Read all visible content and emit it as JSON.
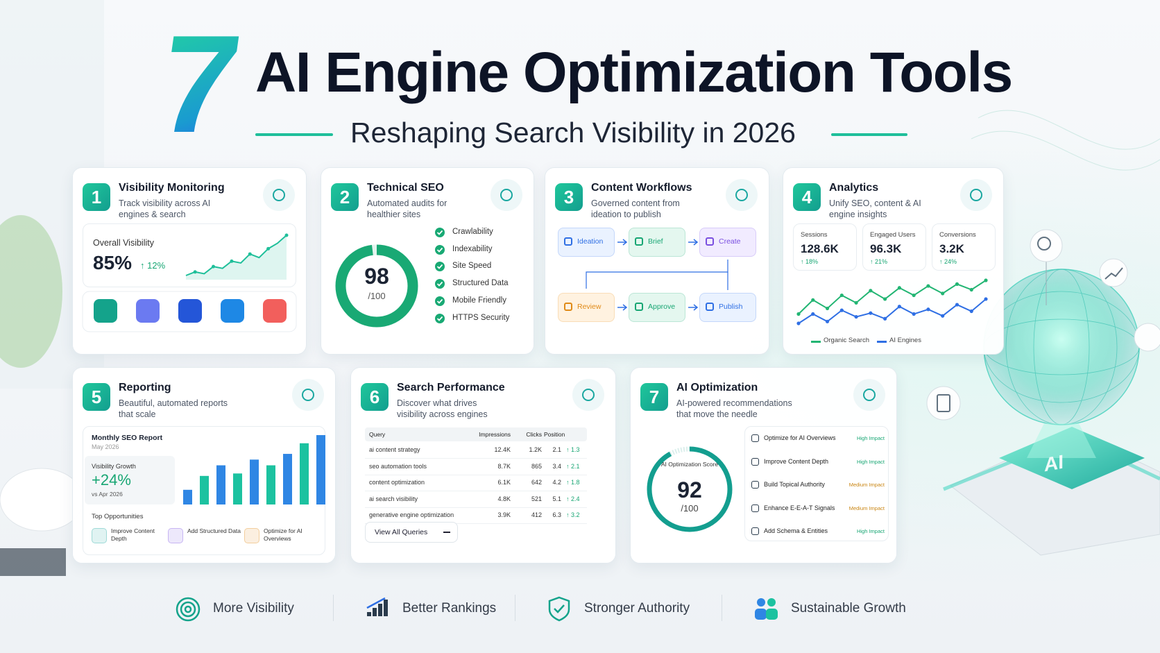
{
  "header": {
    "number": "7",
    "title": "AI Engine Optimization Tools",
    "subtitle": "Reshaping Search Visibility in 2026"
  },
  "cards": [
    {
      "number": "1",
      "title": "Visibility Monitoring",
      "description": "Track visibility across AI engines & search",
      "metric_label": "Overall Visibility",
      "metric_value": "85%",
      "metric_change": "↑ 12%",
      "trend": [
        10,
        14,
        12,
        20,
        18,
        26,
        24,
        34,
        30,
        40,
        46,
        55
      ]
    },
    {
      "number": "2",
      "title": "Technical SEO",
      "description": "Automated audits for healthier sites",
      "score": "98",
      "score_max": "/100",
      "checks": [
        "Crawlability",
        "Indexability",
        "Site Speed",
        "Structured Data",
        "Mobile Friendly",
        "HTTPS Security"
      ]
    },
    {
      "number": "3",
      "title": "Content Workflows",
      "description": "Governed content from ideation to publish",
      "steps": [
        "Ideation",
        "Brief",
        "Create",
        "Review",
        "Approve",
        "Publish"
      ]
    },
    {
      "number": "4",
      "title": "Analytics",
      "description": "Unify SEO, content & AI engine insights",
      "stats": [
        {
          "label": "Sessions",
          "value": "128.6K",
          "change": "↑ 18%"
        },
        {
          "label": "Engaged Users",
          "value": "96.3K",
          "change": "↑ 21%"
        },
        {
          "label": "Conversions",
          "value": "3.2K",
          "change": "↑ 24%"
        }
      ],
      "series": [
        {
          "name": "Organic Search",
          "color": "#22b573",
          "values": [
            30,
            45,
            36,
            50,
            42,
            55,
            46,
            58,
            50,
            60,
            52,
            62,
            56,
            66
          ]
        },
        {
          "name": "AI Engines",
          "color": "#2f6fe4",
          "values": [
            20,
            30,
            22,
            34,
            27,
            31,
            25,
            38,
            30,
            35,
            28,
            40,
            33,
            46
          ]
        }
      ]
    },
    {
      "number": "5",
      "title": "Reporting",
      "description": "Beautiful, automated reports that scale",
      "report_title": "Monthly SEO Report",
      "report_date": "May 2026",
      "growth_label": "Visibility Growth",
      "growth_value": "+24%",
      "growth_note": "vs Apr 2026",
      "bars": [
        18,
        35,
        48,
        38,
        55,
        48,
        62,
        75,
        85
      ],
      "opportunities_title": "Top Opportunities",
      "opportunities": [
        "Improve Content Depth",
        "Add Structured Data",
        "Optimize for AI Overviews"
      ]
    },
    {
      "number": "6",
      "title": "Search Performance",
      "description": "Discover what drives visibility across engines",
      "table": {
        "columns": [
          "Query",
          "Impressions",
          "Clicks",
          "Position"
        ],
        "rows": [
          [
            "ai content strategy",
            "12.4K",
            "1.2K",
            "2.1",
            "↑ 1.3"
          ],
          [
            "seo automation tools",
            "8.7K",
            "865",
            "3.4",
            "↑ 2.1"
          ],
          [
            "content optimization",
            "6.1K",
            "642",
            "4.2",
            "↑ 1.8"
          ],
          [
            "ai search visibility",
            "4.8K",
            "521",
            "5.1",
            "↑ 2.4"
          ],
          [
            "generative engine optimization",
            "3.9K",
            "412",
            "6.3",
            "↑ 3.2"
          ]
        ]
      },
      "button": "View All Queries"
    },
    {
      "number": "7",
      "title": "AI Optimization",
      "description": "AI-powered recommendations that move the needle",
      "score_label": "AI Optimization Score",
      "score": "92",
      "score_max": "/100",
      "recommendations": [
        {
          "label": "Optimize for AI Overviews",
          "impact": "High Impact"
        },
        {
          "label": "Improve Content Depth",
          "impact": "High Impact"
        },
        {
          "label": "Build Topical Authority",
          "impact": "Medium Impact"
        },
        {
          "label": "Enhance E-E-A-T Signals",
          "impact": "Medium Impact"
        },
        {
          "label": "Add Schema & Entities",
          "impact": "High Impact"
        }
      ]
    }
  ],
  "badge": "AI",
  "features": [
    "More Visibility",
    "Better Rankings",
    "Stronger Authority",
    "Sustainable Growth"
  ]
}
